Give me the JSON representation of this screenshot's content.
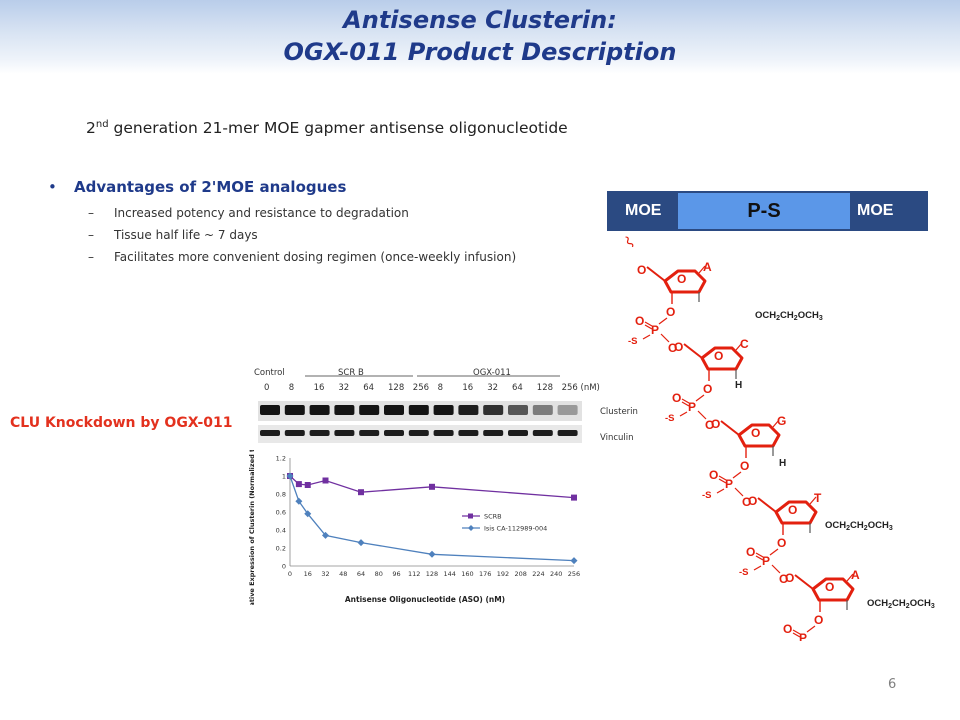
{
  "header": {
    "title_line1": "Antisense Clusterin:",
    "title_line2": "OGX-011 Product Description"
  },
  "subtitle": {
    "sup": "nd",
    "number": "2",
    "text": " generation 21-mer MOE gapmer antisense oligonucleotide"
  },
  "advantages": {
    "heading": "Advantages of 2'MOE analogues",
    "items": [
      "Increased potency and resistance to degradation",
      "Tissue half life ~ 7 days",
      "Facilitates more convenient dosing regimen (once-weekly infusion)"
    ]
  },
  "knockdown_label": "CLU Knockdown by OGX-011",
  "blot": {
    "control": "Control",
    "scr_b": "SCR B",
    "ogx": "OGX-011",
    "doses": [
      "0",
      "8",
      "16",
      "32",
      "64",
      "128",
      "256",
      "8",
      "16",
      "32",
      "64",
      "128",
      "256 (nM)"
    ],
    "rows": [
      "Clusterin",
      "Vinculin"
    ],
    "clusterin_levels": [
      0.95,
      0.95,
      0.95,
      0.95,
      0.95,
      0.95,
      0.95,
      0.95,
      0.9,
      0.8,
      0.6,
      0.4,
      0.25
    ],
    "vinculin_levels": [
      0.9,
      0.9,
      0.9,
      0.9,
      0.9,
      0.9,
      0.9,
      0.9,
      0.9,
      0.9,
      0.9,
      0.9,
      0.9
    ]
  },
  "structure": {
    "bar": {
      "left": "MOE",
      "mid": "P-S",
      "right": "MOE"
    },
    "bases": [
      "A",
      "C",
      "G",
      "T",
      "A"
    ],
    "substituents": [
      "OCH2CH2OCH3",
      "H",
      "H",
      "OCH2CH2OCH3",
      "OCH2CH2OCH3"
    ],
    "atom_o": "O",
    "atom_p": "P",
    "atom_s": "-S",
    "color": "#e3200f"
  },
  "chart_data": {
    "type": "line",
    "ylabel": "Relative Expression of Clusterin (Normalized to Vinculin)",
    "xlabel": "Antisense Oligonucleotide (ASO) (nM)",
    "xlim": [
      0,
      256
    ],
    "ylim": [
      0,
      1.2
    ],
    "xticks": [
      0,
      16,
      32,
      48,
      64,
      80,
      96,
      112,
      128,
      144,
      160,
      176,
      192,
      208,
      224,
      240,
      256
    ],
    "yticks": [
      0,
      0.2,
      0.4,
      0.6,
      0.8,
      1,
      1.2
    ],
    "ytick_labels": [
      "0",
      "0.2",
      "0.4",
      "0.6",
      "0.8",
      "1",
      "1.2"
    ],
    "series": [
      {
        "name": "SCRB",
        "color": "#7030a0",
        "marker": "square",
        "x": [
          0,
          8,
          16,
          32,
          64,
          128,
          256
        ],
        "y": [
          1.0,
          0.91,
          0.9,
          0.95,
          0.82,
          0.88,
          0.76
        ]
      },
      {
        "name": "Isis CA-112989-004",
        "color": "#4f81bd",
        "marker": "diamond",
        "x": [
          0,
          8,
          16,
          32,
          64,
          128,
          256
        ],
        "y": [
          1.0,
          0.72,
          0.58,
          0.34,
          0.26,
          0.13,
          0.06
        ]
      }
    ]
  }
}
